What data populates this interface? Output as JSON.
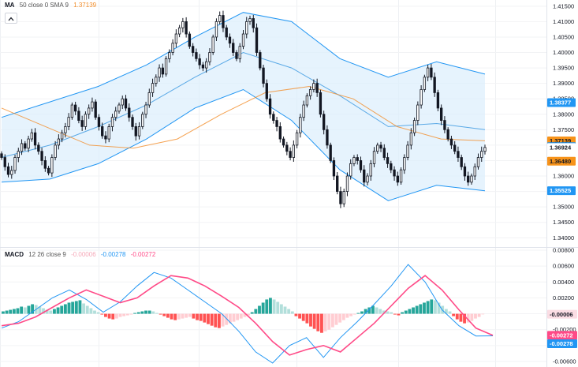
{
  "price_legend": {
    "name": "MA",
    "params": "50 close 0 SMA 9",
    "value": "1.37139",
    "value_color": "#f28c28"
  },
  "macd_legend": {
    "name": "MACD",
    "params": "12 26 close 9",
    "v1": "-0.00006",
    "v2": "-0.00278",
    "v3": "-0.00272",
    "v1_color": "#f5a8b8",
    "v2_color": "#2196f3",
    "v3_color": "#ff4a87"
  },
  "price_axis": {
    "ticks": [
      "1.41500",
      "1.41000",
      "1.40500",
      "1.40000",
      "1.39500",
      "1.39000",
      "1.38500",
      "1.38000",
      "1.37500",
      "1.37000",
      "1.36500",
      "1.36000",
      "1.35500",
      "1.35000",
      "1.34500",
      "1.34000"
    ]
  },
  "price_badges": [
    {
      "text": "1.38377",
      "bg": "#2196f3",
      "fg": "#ffffff",
      "value": 1.38377
    },
    {
      "text": "1.37139",
      "bg": "#f7931a",
      "fg": "#131722",
      "value": 1.37139
    },
    {
      "text": "1.36951",
      "bg": "#2196f3",
      "fg": "#ffffff",
      "value": 1.36951
    },
    {
      "text": "1.36924",
      "bg": "#ffffff",
      "fg": "#131722",
      "value": 1.36924
    },
    {
      "text": "1.36480",
      "bg": "#f7931a",
      "fg": "#131722",
      "value": 1.3648
    },
    {
      "text": "1.35525",
      "bg": "#2196f3",
      "fg": "#ffffff",
      "value": 1.35525
    }
  ],
  "macd_axis": {
    "ticks": [
      "0.00800",
      "0.00600",
      "0.00400",
      "0.00200",
      "0.00000",
      "-0.00200",
      "-0.00400",
      "-0.00600"
    ]
  },
  "macd_badges": [
    {
      "text": "-0.00006",
      "bg": "#fbdde4",
      "fg": "#131722",
      "value": -6e-05
    },
    {
      "text": "-0.00272",
      "bg": "#ff4a87",
      "fg": "#ffffff",
      "value": -0.00272
    },
    {
      "text": "-0.00278",
      "bg": "#2196f3",
      "fg": "#ffffff",
      "value": -0.00278
    }
  ],
  "chart_data": [
    {
      "type": "candlestick",
      "title": "",
      "ylim": [
        1.337,
        1.417
      ],
      "colors": {
        "up": "#ffffff",
        "down": "#131722",
        "bands": "#2196f3",
        "ma": "#f28c28",
        "band_fill": "#dbeefc"
      },
      "series": [
        {
          "name": "candles",
          "close": [
            1.366,
            1.363,
            1.3605,
            1.3618,
            1.366,
            1.368,
            1.3705,
            1.369,
            1.372,
            1.374,
            1.37,
            1.368,
            1.365,
            1.3625,
            1.361,
            1.366,
            1.37,
            1.372,
            1.374,
            1.376,
            1.379,
            1.383,
            1.381,
            1.378,
            1.376,
            1.38,
            1.382,
            1.384,
            1.379,
            1.376,
            1.373,
            1.372,
            1.376,
            1.379,
            1.381,
            1.383,
            1.385,
            1.382,
            1.379,
            1.376,
            1.373,
            1.376,
            1.38,
            1.383,
            1.387,
            1.39,
            1.392,
            1.395,
            1.393,
            1.398,
            1.4,
            1.403,
            1.406,
            1.408,
            1.41,
            1.406,
            1.402,
            1.4,
            1.398,
            1.396,
            1.395,
            1.397,
            1.4,
            1.405,
            1.41,
            1.412,
            1.408,
            1.405,
            1.403,
            1.4,
            1.398,
            1.402,
            1.406,
            1.41,
            1.411,
            1.408,
            1.4,
            1.395,
            1.39,
            1.385,
            1.38,
            1.378,
            1.376,
            1.372,
            1.37,
            1.368,
            1.366,
            1.37,
            1.374,
            1.379,
            1.383,
            1.386,
            1.388,
            1.39,
            1.387,
            1.38,
            1.375,
            1.37,
            1.365,
            1.36,
            1.355,
            1.351,
            1.355,
            1.36,
            1.364,
            1.366,
            1.365,
            1.362,
            1.358,
            1.36,
            1.364,
            1.368,
            1.37,
            1.369,
            1.366,
            1.364,
            1.362,
            1.36,
            1.358,
            1.362,
            1.366,
            1.37,
            1.374,
            1.378,
            1.383,
            1.388,
            1.392,
            1.395,
            1.392,
            1.387,
            1.382,
            1.378,
            1.375,
            1.372,
            1.37,
            1.368,
            1.366,
            1.363,
            1.36,
            1.358,
            1.36,
            1.363,
            1.366,
            1.368,
            1.36924
          ]
        },
        {
          "name": "BB upper",
          "values": [
            1.379,
            1.384,
            1.389,
            1.396,
            1.405,
            1.413,
            1.41,
            1.398,
            1.392,
            1.397,
            1.393
          ]
        },
        {
          "name": "BB middle",
          "values": [
            1.366,
            1.37,
            1.376,
            1.383,
            1.392,
            1.4,
            1.395,
            1.386,
            1.376,
            1.377,
            1.375
          ]
        },
        {
          "name": "BB lower",
          "values": [
            1.358,
            1.359,
            1.364,
            1.372,
            1.382,
            1.388,
            1.378,
            1.362,
            1.352,
            1.357,
            1.3552
          ]
        },
        {
          "name": "MA 50",
          "values": [
            1.382,
            1.376,
            1.37,
            1.369,
            1.372,
            1.38,
            1.387,
            1.389,
            1.385,
            1.376,
            1.372,
            1.3714
          ]
        }
      ]
    },
    {
      "type": "macd",
      "title": "",
      "ylim": [
        -0.0067,
        0.0084
      ],
      "series": [
        {
          "name": "histogram",
          "values": [
            0.0003,
            0.0004,
            0.0005,
            0.0006,
            0.0007,
            0.0009,
            0.0008,
            0.001,
            0.0012,
            0.0011,
            0.0009,
            0.0007,
            0.0005,
            0.0004,
            0.0006,
            0.0008,
            0.001,
            0.0012,
            0.0014,
            0.0015,
            0.0016,
            0.0017,
            0.0013,
            0.001,
            0.0007,
            0.0004,
            0.0002,
            -0.0001,
            -0.0004,
            -0.0006,
            -0.0007,
            -0.0006,
            -0.0004,
            -0.0003,
            -0.0002,
            -0.0001,
            0.0001,
            0.0002,
            0.0003,
            0.0004,
            0.0004,
            0.0003,
            0.0001,
            -0.0001,
            -0.0003,
            -0.0005,
            -0.0007,
            -0.0008,
            -0.0007,
            -0.0006,
            -0.0005,
            -0.0004,
            -0.0006,
            -0.0008,
            -0.0009,
            -0.0011,
            -0.0013,
            -0.0015,
            -0.0017,
            -0.0018,
            -0.0016,
            -0.0014,
            -0.0012,
            -0.001,
            -0.0008,
            -0.0006,
            -0.0004,
            -0.0002,
            0.0002,
            0.0006,
            0.001,
            0.0014,
            0.0018,
            0.002,
            0.0018,
            0.0015,
            0.0012,
            0.0009,
            0.0006,
            0.0003,
            -0.0003,
            -0.0006,
            -0.0009,
            -0.0012,
            -0.0016,
            -0.0019,
            -0.0022,
            -0.0024,
            -0.0022,
            -0.002,
            -0.0017,
            -0.0014,
            -0.0011,
            -0.0008,
            -0.0005,
            -0.0003,
            -0.0001,
            0.0001,
            0.0003,
            0.0006,
            0.0008,
            0.001,
            0.0008,
            0.0006,
            0.0004,
            0.0003,
            0.0002,
            -0.0001,
            -0.0002,
            0.0002,
            0.0004,
            0.0006,
            0.0008,
            0.001,
            0.0012,
            0.0014,
            0.0016,
            0.0018,
            0.0017,
            0.0014,
            0.001,
            0.0006,
            0.0003,
            -0.0003,
            -0.0007,
            -0.001,
            -0.0012,
            -0.0011,
            -0.0009,
            -0.0006,
            -0.0004,
            -6e-05
          ]
        },
        {
          "name": "MACD",
          "values": [
            -0.0018,
            -0.001,
            0.0005,
            0.002,
            0.003,
            0.0018,
            0.0002,
            0.0015,
            0.0035,
            0.0052,
            0.0045,
            0.003,
            0.0015,
            0.0,
            -0.0022,
            -0.0048,
            -0.0062,
            -0.004,
            -0.003,
            -0.0055,
            -0.003,
            -0.001,
            0.0012,
            0.0035,
            0.0062,
            0.004,
            0.0005,
            -0.0015,
            -0.0028,
            -0.00278
          ]
        },
        {
          "name": "Signal",
          "values": [
            -0.0015,
            -0.0012,
            -0.0004,
            0.0008,
            0.002,
            0.003,
            0.0022,
            0.0014,
            0.002,
            0.0035,
            0.0048,
            0.0045,
            0.0035,
            0.0022,
            0.0008,
            -0.0012,
            -0.0035,
            -0.0052,
            -0.0045,
            -0.004,
            -0.0048,
            -0.003,
            -0.0012,
            0.001,
            0.0032,
            0.0048,
            0.003,
            0.0005,
            -0.0018,
            -0.00272
          ]
        }
      ]
    }
  ]
}
